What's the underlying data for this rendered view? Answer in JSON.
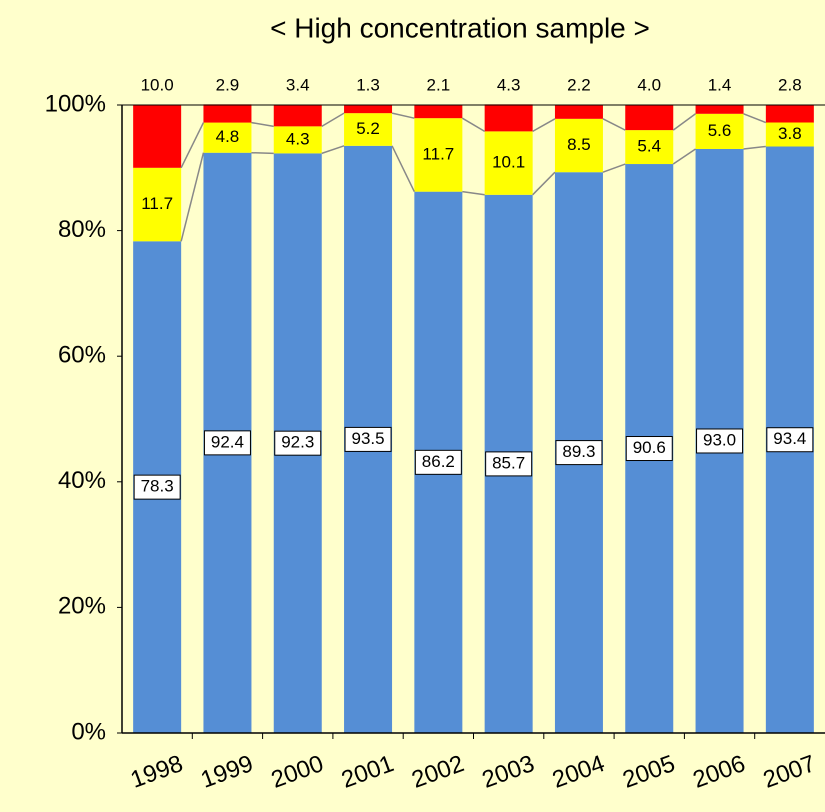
{
  "chart_data": {
    "type": "stacked_bar",
    "title": "< High concentration sample >",
    "categories": [
      "1998",
      "1999",
      "2000",
      "2001",
      "2002",
      "2003",
      "2004",
      "2005",
      "2006",
      "2007"
    ],
    "series": [
      {
        "color": "#558ed5",
        "values": [
          78.3,
          92.4,
          92.3,
          93.5,
          86.2,
          85.7,
          89.3,
          90.6,
          93.0,
          93.4
        ],
        "value_labels": [
          "78.3",
          "92.4",
          "92.3",
          "93.5",
          "86.2",
          "85.7",
          "89.3",
          "90.6",
          "93.0",
          "93.4"
        ]
      },
      {
        "color": "#ffff00",
        "values": [
          11.7,
          4.8,
          4.3,
          5.2,
          11.7,
          10.1,
          8.5,
          5.4,
          5.6,
          3.8
        ],
        "value_labels": [
          "11.7",
          "4.8",
          "4.3",
          "5.2",
          "11.7",
          "10.1",
          "8.5",
          "5.4",
          "5.6",
          "3.8"
        ]
      },
      {
        "color": "#ff0000",
        "values": [
          10.0,
          2.9,
          3.4,
          1.3,
          2.1,
          4.3,
          2.2,
          4.0,
          1.4,
          2.8
        ],
        "value_labels": [
          "10.0",
          "2.9",
          "3.4",
          "1.3",
          "2.1",
          "4.3",
          "2.2",
          "4.0",
          "1.4",
          "2.8"
        ]
      }
    ],
    "ylim": [
      0,
      100
    ],
    "yticks": [
      {
        "value": 0,
        "label": "0%"
      },
      {
        "value": 20,
        "label": "20%"
      },
      {
        "value": 40,
        "label": "40%"
      },
      {
        "value": 60,
        "label": "60%"
      },
      {
        "value": 80,
        "label": "80%"
      },
      {
        "value": 100,
        "label": "100%"
      }
    ]
  }
}
